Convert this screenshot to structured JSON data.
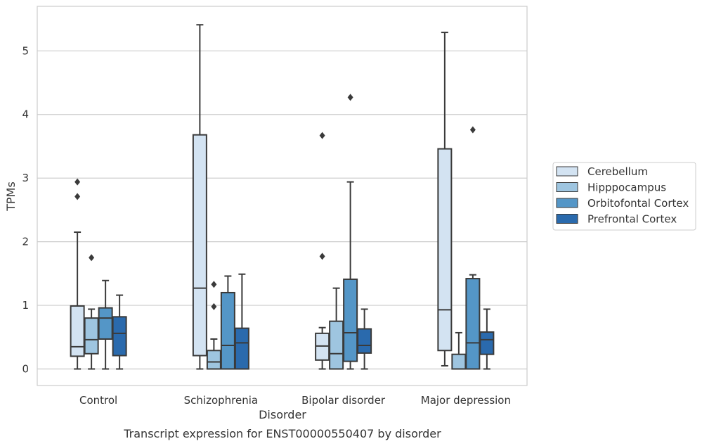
{
  "chart_data": {
    "type": "box",
    "title": "",
    "caption": "Transcript expression for ENST00000550407 by disorder",
    "xlabel": "Disorder",
    "ylabel": "TPMs",
    "ylim": [
      -0.26,
      5.7
    ],
    "yticks": [
      0,
      1,
      2,
      3,
      4,
      5
    ],
    "grid": "horizontal",
    "legend_position": "right",
    "categories": [
      "Control",
      "Schizophrenia",
      "Bipolar disorder",
      "Major depression"
    ],
    "series": [
      {
        "name": "Cerebellum",
        "color": "#d3e3f2",
        "boxes": [
          {
            "whisker_low": 0.0,
            "q1": 0.2,
            "median": 0.35,
            "q3": 0.99,
            "whisker_high": 2.15,
            "outliers": [
              2.71,
              2.94
            ]
          },
          {
            "whisker_low": 0.0,
            "q1": 0.21,
            "median": 1.27,
            "q3": 3.68,
            "whisker_high": 5.41,
            "outliers": []
          },
          {
            "whisker_low": 0.0,
            "q1": 0.14,
            "median": 0.36,
            "q3": 0.56,
            "whisker_high": 0.65,
            "outliers": [
              1.77,
              3.67
            ]
          },
          {
            "whisker_low": 0.05,
            "q1": 0.29,
            "median": 0.93,
            "q3": 3.46,
            "whisker_high": 5.29,
            "outliers": []
          }
        ]
      },
      {
        "name": "Hipppocampus",
        "color": "#9ec5e0",
        "boxes": [
          {
            "whisker_low": 0.0,
            "q1": 0.24,
            "median": 0.46,
            "q3": 0.8,
            "whisker_high": 0.94,
            "outliers": [
              1.75
            ]
          },
          {
            "whisker_low": 0.0,
            "q1": 0.0,
            "median": 0.11,
            "q3": 0.29,
            "whisker_high": 0.47,
            "outliers": [
              0.98,
              1.33
            ]
          },
          {
            "whisker_low": 0.0,
            "q1": 0.0,
            "median": 0.24,
            "q3": 0.75,
            "whisker_high": 1.27,
            "outliers": []
          },
          {
            "whisker_low": 0.0,
            "q1": 0.0,
            "median": 0.0,
            "q3": 0.23,
            "whisker_high": 0.57,
            "outliers": []
          }
        ]
      },
      {
        "name": "Orbitofontal Cortex",
        "color": "#5496c7",
        "boxes": [
          {
            "whisker_low": 0.0,
            "q1": 0.47,
            "median": 0.8,
            "q3": 0.96,
            "whisker_high": 1.39,
            "outliers": []
          },
          {
            "whisker_low": 0.0,
            "q1": 0.0,
            "median": 0.37,
            "q3": 1.2,
            "whisker_high": 1.46,
            "outliers": []
          },
          {
            "whisker_low": 0.0,
            "q1": 0.12,
            "median": 0.57,
            "q3": 1.41,
            "whisker_high": 2.94,
            "outliers": [
              4.27
            ]
          },
          {
            "whisker_low": 0.0,
            "q1": 0.0,
            "median": 0.41,
            "q3": 1.42,
            "whisker_high": 1.48,
            "outliers": [
              3.76
            ]
          }
        ]
      },
      {
        "name": "Prefrontal Cortex",
        "color": "#2a6aad",
        "boxes": [
          {
            "whisker_low": 0.0,
            "q1": 0.21,
            "median": 0.56,
            "q3": 0.82,
            "whisker_high": 1.16,
            "outliers": []
          },
          {
            "whisker_low": 0.0,
            "q1": 0.0,
            "median": 0.41,
            "q3": 0.64,
            "whisker_high": 1.49,
            "outliers": []
          },
          {
            "whisker_low": 0.0,
            "q1": 0.25,
            "median": 0.37,
            "q3": 0.63,
            "whisker_high": 0.94,
            "outliers": []
          },
          {
            "whisker_low": 0.0,
            "q1": 0.23,
            "median": 0.46,
            "q3": 0.58,
            "whisker_high": 0.94,
            "outliers": []
          }
        ]
      }
    ]
  }
}
